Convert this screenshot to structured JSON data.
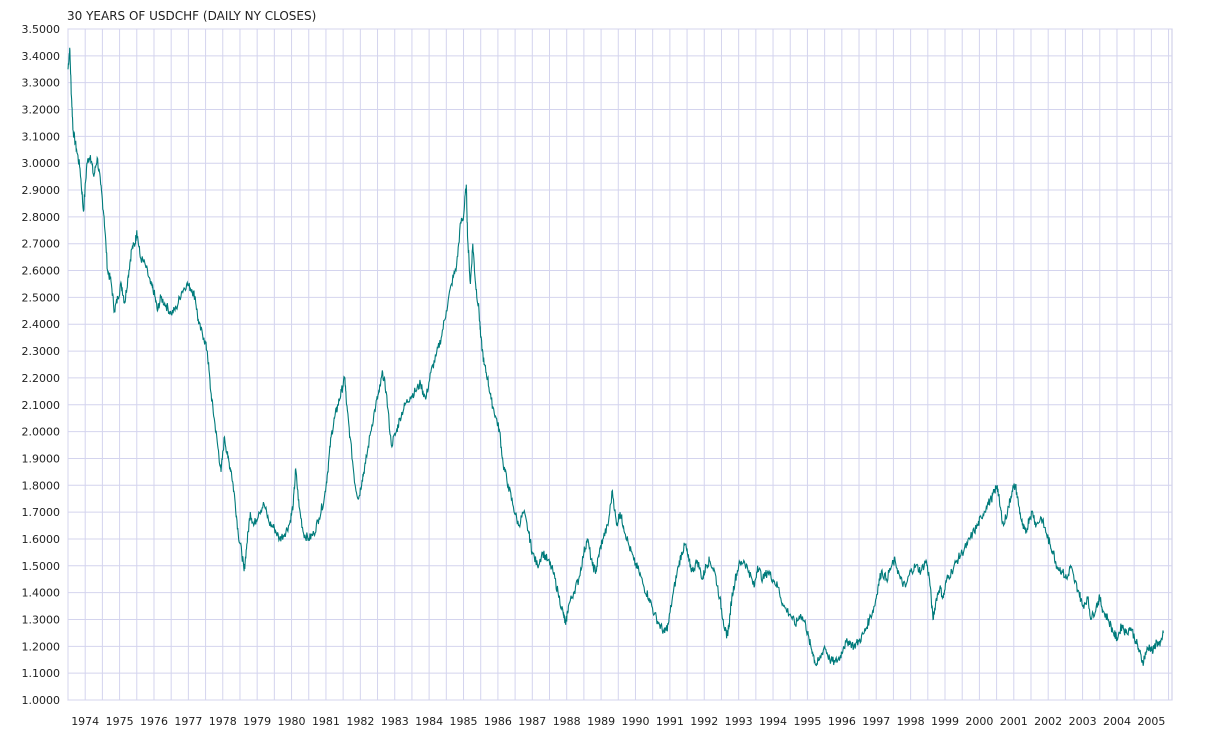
{
  "chart_data": {
    "type": "line",
    "title": "30 YEARS OF USDCHF (DAILY NY CLOSES)",
    "xlabel": "",
    "ylabel": "",
    "ylim": [
      1.0,
      3.5
    ],
    "xlim": [
      1973.5,
      2005.6
    ],
    "grid": true,
    "legend": "none",
    "y_ticks": [
      "1.0000",
      "1.1000",
      "1.2000",
      "1.3000",
      "1.4000",
      "1.5000",
      "1.6000",
      "1.7000",
      "1.8000",
      "1.9000",
      "2.0000",
      "2.1000",
      "2.2000",
      "2.3000",
      "2.4000",
      "2.5000",
      "2.6000",
      "2.7000",
      "2.8000",
      "2.9000",
      "3.0000",
      "3.1000",
      "3.2000",
      "3.3000",
      "3.4000",
      "3.5000"
    ],
    "x_ticks": [
      "1974",
      "1975",
      "1976",
      "1977",
      "1978",
      "1979",
      "1980",
      "1981",
      "1982",
      "1983",
      "1984",
      "1985",
      "1986",
      "1987",
      "1988",
      "1989",
      "1990",
      "1991",
      "1992",
      "1993",
      "1994",
      "1995",
      "1996",
      "1997",
      "1998",
      "1999",
      "2000",
      "2001",
      "2002",
      "2003",
      "2004",
      "2005"
    ],
    "series": [
      {
        "line_color": "#007b7b",
        "points": [
          [
            1973.5,
            3.35
          ],
          [
            1973.55,
            3.43
          ],
          [
            1973.6,
            3.25
          ],
          [
            1973.65,
            3.12
          ],
          [
            1973.75,
            3.05
          ],
          [
            1973.85,
            2.98
          ],
          [
            1973.95,
            2.82
          ],
          [
            1974.05,
            3.0
          ],
          [
            1974.15,
            3.03
          ],
          [
            1974.25,
            2.95
          ],
          [
            1974.35,
            3.02
          ],
          [
            1974.45,
            2.92
          ],
          [
            1974.55,
            2.8
          ],
          [
            1974.65,
            2.6
          ],
          [
            1974.75,
            2.56
          ],
          [
            1974.85,
            2.45
          ],
          [
            1974.95,
            2.5
          ],
          [
            1975.05,
            2.55
          ],
          [
            1975.15,
            2.48
          ],
          [
            1975.25,
            2.58
          ],
          [
            1975.35,
            2.68
          ],
          [
            1975.45,
            2.7
          ],
          [
            1975.5,
            2.75
          ],
          [
            1975.6,
            2.65
          ],
          [
            1975.75,
            2.62
          ],
          [
            1975.9,
            2.55
          ],
          [
            1976.0,
            2.52
          ],
          [
            1976.1,
            2.45
          ],
          [
            1976.2,
            2.5
          ],
          [
            1976.35,
            2.47
          ],
          [
            1976.5,
            2.44
          ],
          [
            1976.65,
            2.46
          ],
          [
            1976.8,
            2.52
          ],
          [
            1976.95,
            2.55
          ],
          [
            1977.1,
            2.53
          ],
          [
            1977.2,
            2.5
          ],
          [
            1977.3,
            2.4
          ],
          [
            1977.45,
            2.35
          ],
          [
            1977.55,
            2.3
          ],
          [
            1977.65,
            2.15
          ],
          [
            1977.75,
            2.05
          ],
          [
            1977.85,
            1.95
          ],
          [
            1977.95,
            1.85
          ],
          [
            1978.05,
            1.98
          ],
          [
            1978.15,
            1.9
          ],
          [
            1978.25,
            1.85
          ],
          [
            1978.35,
            1.75
          ],
          [
            1978.45,
            1.62
          ],
          [
            1978.55,
            1.55
          ],
          [
            1978.62,
            1.48
          ],
          [
            1978.7,
            1.58
          ],
          [
            1978.8,
            1.7
          ],
          [
            1978.9,
            1.65
          ],
          [
            1979.05,
            1.7
          ],
          [
            1979.2,
            1.73
          ],
          [
            1979.35,
            1.66
          ],
          [
            1979.5,
            1.64
          ],
          [
            1979.65,
            1.6
          ],
          [
            1979.8,
            1.62
          ],
          [
            1979.95,
            1.66
          ],
          [
            1980.05,
            1.73
          ],
          [
            1980.12,
            1.86
          ],
          [
            1980.22,
            1.72
          ],
          [
            1980.35,
            1.62
          ],
          [
            1980.5,
            1.6
          ],
          [
            1980.65,
            1.62
          ],
          [
            1980.8,
            1.68
          ],
          [
            1980.95,
            1.75
          ],
          [
            1981.05,
            1.85
          ],
          [
            1981.15,
            1.98
          ],
          [
            1981.25,
            2.05
          ],
          [
            1981.35,
            2.1
          ],
          [
            1981.45,
            2.15
          ],
          [
            1981.55,
            2.2
          ],
          [
            1981.6,
            2.1
          ],
          [
            1981.7,
            1.98
          ],
          [
            1981.85,
            1.8
          ],
          [
            1981.95,
            1.75
          ],
          [
            1982.05,
            1.82
          ],
          [
            1982.15,
            1.88
          ],
          [
            1982.3,
            2.0
          ],
          [
            1982.45,
            2.1
          ],
          [
            1982.55,
            2.15
          ],
          [
            1982.65,
            2.22
          ],
          [
            1982.75,
            2.15
          ],
          [
            1982.9,
            1.95
          ],
          [
            1983.05,
            2.0
          ],
          [
            1983.15,
            2.05
          ],
          [
            1983.3,
            2.1
          ],
          [
            1983.45,
            2.13
          ],
          [
            1983.6,
            2.15
          ],
          [
            1983.75,
            2.18
          ],
          [
            1983.9,
            2.12
          ],
          [
            1984.05,
            2.22
          ],
          [
            1984.2,
            2.28
          ],
          [
            1984.35,
            2.35
          ],
          [
            1984.5,
            2.45
          ],
          [
            1984.65,
            2.55
          ],
          [
            1984.8,
            2.62
          ],
          [
            1984.92,
            2.78
          ],
          [
            1985.0,
            2.8
          ],
          [
            1985.08,
            2.92
          ],
          [
            1985.12,
            2.72
          ],
          [
            1985.2,
            2.55
          ],
          [
            1985.27,
            2.7
          ],
          [
            1985.35,
            2.55
          ],
          [
            1985.45,
            2.45
          ],
          [
            1985.5,
            2.35
          ],
          [
            1985.6,
            2.25
          ],
          [
            1985.7,
            2.2
          ],
          [
            1985.8,
            2.12
          ],
          [
            1985.95,
            2.05
          ],
          [
            1986.05,
            2.0
          ],
          [
            1986.15,
            1.88
          ],
          [
            1986.3,
            1.8
          ],
          [
            1986.45,
            1.72
          ],
          [
            1986.6,
            1.65
          ],
          [
            1986.75,
            1.7
          ],
          [
            1986.9,
            1.62
          ],
          [
            1987.0,
            1.55
          ],
          [
            1987.15,
            1.5
          ],
          [
            1987.3,
            1.55
          ],
          [
            1987.45,
            1.52
          ],
          [
            1987.6,
            1.48
          ],
          [
            1987.75,
            1.4
          ],
          [
            1987.9,
            1.32
          ],
          [
            1987.97,
            1.28
          ],
          [
            1988.05,
            1.35
          ],
          [
            1988.2,
            1.4
          ],
          [
            1988.35,
            1.45
          ],
          [
            1988.5,
            1.55
          ],
          [
            1988.6,
            1.6
          ],
          [
            1988.75,
            1.5
          ],
          [
            1988.85,
            1.48
          ],
          [
            1988.95,
            1.55
          ],
          [
            1989.05,
            1.6
          ],
          [
            1989.2,
            1.65
          ],
          [
            1989.33,
            1.78
          ],
          [
            1989.45,
            1.65
          ],
          [
            1989.55,
            1.7
          ],
          [
            1989.65,
            1.65
          ],
          [
            1989.8,
            1.58
          ],
          [
            1989.95,
            1.52
          ],
          [
            1990.1,
            1.48
          ],
          [
            1990.25,
            1.42
          ],
          [
            1990.4,
            1.38
          ],
          [
            1990.55,
            1.32
          ],
          [
            1990.7,
            1.28
          ],
          [
            1990.85,
            1.25
          ],
          [
            1990.95,
            1.28
          ],
          [
            1991.1,
            1.4
          ],
          [
            1991.25,
            1.5
          ],
          [
            1991.35,
            1.55
          ],
          [
            1991.45,
            1.58
          ],
          [
            1991.55,
            1.52
          ],
          [
            1991.65,
            1.48
          ],
          [
            1991.8,
            1.52
          ],
          [
            1991.95,
            1.45
          ],
          [
            1992.05,
            1.5
          ],
          [
            1992.15,
            1.52
          ],
          [
            1992.3,
            1.48
          ],
          [
            1992.45,
            1.38
          ],
          [
            1992.55,
            1.3
          ],
          [
            1992.65,
            1.23
          ],
          [
            1992.72,
            1.28
          ],
          [
            1992.8,
            1.38
          ],
          [
            1992.9,
            1.45
          ],
          [
            1993.0,
            1.5
          ],
          [
            1993.15,
            1.52
          ],
          [
            1993.3,
            1.48
          ],
          [
            1993.45,
            1.42
          ],
          [
            1993.55,
            1.5
          ],
          [
            1993.7,
            1.45
          ],
          [
            1993.85,
            1.48
          ],
          [
            1994.0,
            1.45
          ],
          [
            1994.15,
            1.42
          ],
          [
            1994.3,
            1.35
          ],
          [
            1994.5,
            1.32
          ],
          [
            1994.65,
            1.28
          ],
          [
            1994.8,
            1.32
          ],
          [
            1994.95,
            1.28
          ],
          [
            1995.05,
            1.22
          ],
          [
            1995.15,
            1.18
          ],
          [
            1995.25,
            1.13
          ],
          [
            1995.35,
            1.15
          ],
          [
            1995.5,
            1.2
          ],
          [
            1995.65,
            1.15
          ],
          [
            1995.8,
            1.14
          ],
          [
            1995.95,
            1.16
          ],
          [
            1996.05,
            1.2
          ],
          [
            1996.2,
            1.22
          ],
          [
            1996.35,
            1.2
          ],
          [
            1996.5,
            1.22
          ],
          [
            1996.65,
            1.25
          ],
          [
            1996.8,
            1.3
          ],
          [
            1996.95,
            1.35
          ],
          [
            1997.05,
            1.42
          ],
          [
            1997.15,
            1.48
          ],
          [
            1997.3,
            1.45
          ],
          [
            1997.45,
            1.5
          ],
          [
            1997.55,
            1.52
          ],
          [
            1997.7,
            1.45
          ],
          [
            1997.85,
            1.42
          ],
          [
            1998.0,
            1.48
          ],
          [
            1998.15,
            1.5
          ],
          [
            1998.3,
            1.48
          ],
          [
            1998.45,
            1.52
          ],
          [
            1998.55,
            1.45
          ],
          [
            1998.65,
            1.3
          ],
          [
            1998.75,
            1.38
          ],
          [
            1998.85,
            1.42
          ],
          [
            1998.95,
            1.38
          ],
          [
            1999.05,
            1.45
          ],
          [
            1999.2,
            1.48
          ],
          [
            1999.35,
            1.52
          ],
          [
            1999.5,
            1.55
          ],
          [
            1999.65,
            1.58
          ],
          [
            1999.8,
            1.62
          ],
          [
            1999.95,
            1.65
          ],
          [
            2000.05,
            1.68
          ],
          [
            2000.2,
            1.72
          ],
          [
            2000.35,
            1.75
          ],
          [
            2000.45,
            1.78
          ],
          [
            2000.52,
            1.8
          ],
          [
            2000.6,
            1.72
          ],
          [
            2000.7,
            1.65
          ],
          [
            2000.85,
            1.72
          ],
          [
            2000.95,
            1.78
          ],
          [
            2001.05,
            1.8
          ],
          [
            2001.15,
            1.72
          ],
          [
            2001.25,
            1.65
          ],
          [
            2001.35,
            1.62
          ],
          [
            2001.45,
            1.68
          ],
          [
            2001.55,
            1.7
          ],
          [
            2001.65,
            1.65
          ],
          [
            2001.8,
            1.68
          ],
          [
            2001.95,
            1.62
          ],
          [
            2002.05,
            1.58
          ],
          [
            2002.15,
            1.55
          ],
          [
            2002.25,
            1.5
          ],
          [
            2002.4,
            1.48
          ],
          [
            2002.55,
            1.45
          ],
          [
            2002.65,
            1.5
          ],
          [
            2002.75,
            1.45
          ],
          [
            2002.9,
            1.4
          ],
          [
            2003.0,
            1.35
          ],
          [
            2003.15,
            1.38
          ],
          [
            2003.25,
            1.3
          ],
          [
            2003.4,
            1.35
          ],
          [
            2003.5,
            1.38
          ],
          [
            2003.6,
            1.33
          ],
          [
            2003.75,
            1.3
          ],
          [
            2003.9,
            1.25
          ],
          [
            2004.0,
            1.23
          ],
          [
            2004.15,
            1.28
          ],
          [
            2004.25,
            1.25
          ],
          [
            2004.4,
            1.27
          ],
          [
            2004.55,
            1.22
          ],
          [
            2004.65,
            1.18
          ],
          [
            2004.75,
            1.14
          ],
          [
            2004.85,
            1.18
          ],
          [
            2004.95,
            1.2
          ],
          [
            2005.05,
            1.18
          ],
          [
            2005.15,
            1.22
          ],
          [
            2005.25,
            1.2
          ],
          [
            2005.35,
            1.25
          ]
        ]
      }
    ]
  }
}
